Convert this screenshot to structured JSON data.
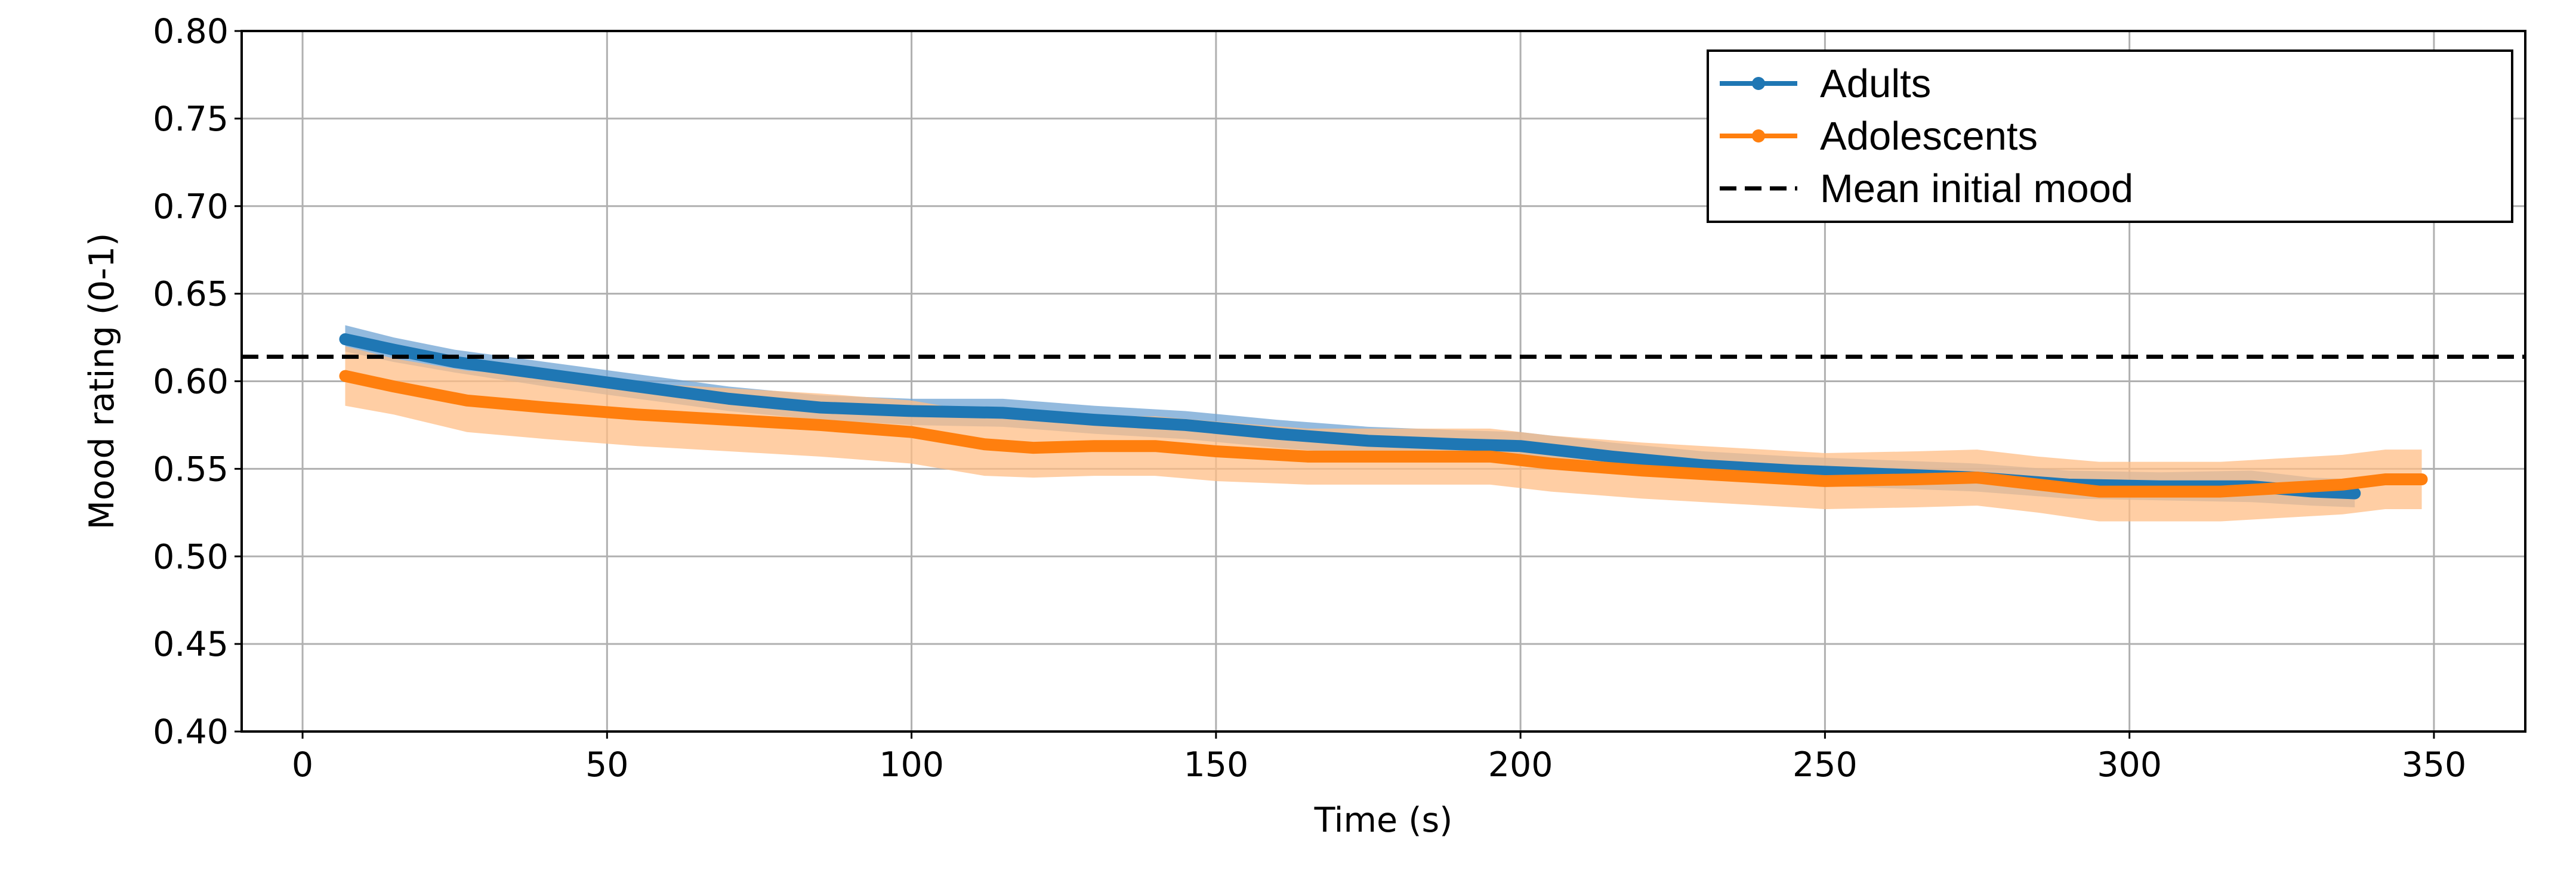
{
  "chart_data": {
    "type": "line",
    "xlabel": "Time (s)",
    "ylabel": "Mood rating (0-1)",
    "xlim": [
      -10,
      365
    ],
    "ylim": [
      0.4,
      0.8
    ],
    "x_ticks": [
      "0",
      "50",
      "100",
      "150",
      "200",
      "250",
      "300",
      "350"
    ],
    "y_ticks": [
      "0.40",
      "0.45",
      "0.50",
      "0.55",
      "0.60",
      "0.65",
      "0.70",
      "0.75",
      "0.80"
    ],
    "grid": true,
    "legend_position": "top-right",
    "reference_line": {
      "name": "Mean initial mood",
      "y": 0.614,
      "style": "dashed",
      "color": "#000000"
    },
    "series": [
      {
        "name": "Adults",
        "color": "#1f77b4",
        "band_color": "#6fa3d3",
        "x": [
          7,
          15,
          25,
          40,
          55,
          70,
          85,
          100,
          115,
          130,
          145,
          160,
          175,
          190,
          200,
          215,
          230,
          245,
          260,
          275,
          290,
          305,
          320,
          330,
          337
        ],
        "y": [
          0.624,
          0.618,
          0.611,
          0.604,
          0.597,
          0.59,
          0.585,
          0.583,
          0.582,
          0.578,
          0.575,
          0.57,
          0.566,
          0.564,
          0.563,
          0.557,
          0.552,
          0.549,
          0.547,
          0.545,
          0.541,
          0.54,
          0.54,
          0.537,
          0.536
        ],
        "lower": [
          0.617,
          0.611,
          0.605,
          0.597,
          0.59,
          0.583,
          0.578,
          0.575,
          0.574,
          0.57,
          0.567,
          0.562,
          0.558,
          0.556,
          0.555,
          0.549,
          0.544,
          0.541,
          0.539,
          0.537,
          0.533,
          0.532,
          0.531,
          0.529,
          0.528
        ],
        "upper": [
          0.632,
          0.625,
          0.618,
          0.611,
          0.604,
          0.597,
          0.592,
          0.59,
          0.59,
          0.586,
          0.583,
          0.578,
          0.574,
          0.572,
          0.571,
          0.565,
          0.56,
          0.557,
          0.555,
          0.553,
          0.549,
          0.548,
          0.549,
          0.545,
          0.544
        ]
      },
      {
        "name": "Adolescents",
        "color": "#ff7f0e",
        "band_color": "#ffbe86",
        "x": [
          7,
          15,
          27,
          40,
          55,
          70,
          85,
          100,
          112,
          120,
          130,
          140,
          150,
          165,
          180,
          195,
          205,
          220,
          235,
          250,
          265,
          275,
          285,
          295,
          305,
          315,
          325,
          335,
          342,
          348
        ],
        "y": [
          0.603,
          0.597,
          0.589,
          0.585,
          0.581,
          0.578,
          0.575,
          0.571,
          0.564,
          0.562,
          0.563,
          0.563,
          0.56,
          0.557,
          0.557,
          0.557,
          0.553,
          0.549,
          0.546,
          0.543,
          0.544,
          0.545,
          0.541,
          0.537,
          0.537,
          0.537,
          0.539,
          0.541,
          0.544,
          0.544
        ],
        "lower": [
          0.586,
          0.581,
          0.571,
          0.567,
          0.563,
          0.56,
          0.557,
          0.553,
          0.546,
          0.545,
          0.546,
          0.546,
          0.543,
          0.541,
          0.541,
          0.541,
          0.537,
          0.533,
          0.53,
          0.527,
          0.528,
          0.529,
          0.525,
          0.52,
          0.52,
          0.52,
          0.522,
          0.524,
          0.527,
          0.527
        ],
        "upper": [
          0.62,
          0.613,
          0.606,
          0.603,
          0.599,
          0.596,
          0.593,
          0.589,
          0.582,
          0.579,
          0.58,
          0.58,
          0.577,
          0.573,
          0.573,
          0.573,
          0.569,
          0.565,
          0.562,
          0.559,
          0.56,
          0.561,
          0.557,
          0.554,
          0.554,
          0.554,
          0.556,
          0.558,
          0.561,
          0.561
        ]
      }
    ]
  }
}
